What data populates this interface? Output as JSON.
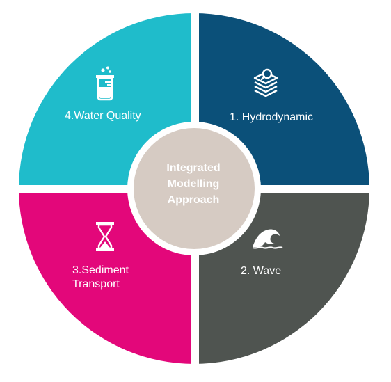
{
  "colors": {
    "hydrodynamic": "#0b5079",
    "wave": "#4f5450",
    "sediment_transport": "#e3077a",
    "water_quality": "#1fbccb",
    "center_fill": "#d6cbc3",
    "background": "#ffffff",
    "text": "#ffffff"
  },
  "center": {
    "line1": "Integrated",
    "line2": "Modelling",
    "line3": "Approach"
  },
  "segments": {
    "hydrodynamic": {
      "label": "1. Hydrodynamic",
      "icon": "layers-search-icon"
    },
    "wave": {
      "label": "2. Wave",
      "icon": "wave-icon"
    },
    "sediment_transport": {
      "label_line1": "3.Sediment",
      "label_line2": "Transport",
      "icon": "hourglass-icon"
    },
    "water_quality": {
      "label": "4.Water Quality",
      "icon": "beaker-icon"
    }
  }
}
